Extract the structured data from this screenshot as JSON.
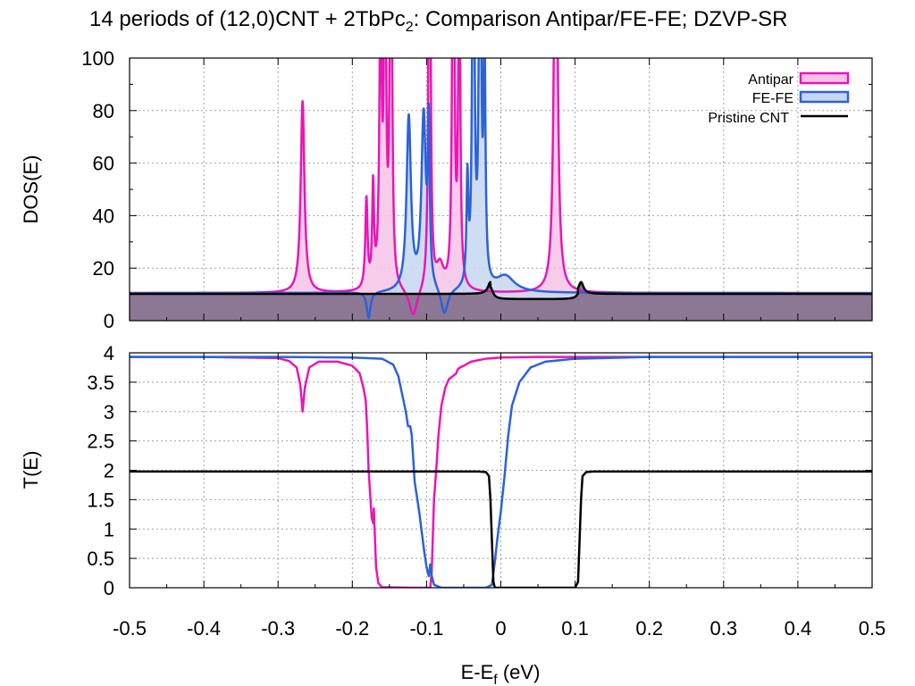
{
  "title": {
    "main": "14 periods of (12,0)CNT + 2TbPc",
    "subscript": "2",
    "suffix": ": Comparison Antipar/FE-FE; DZVP-SR"
  },
  "colors": {
    "antipar": "#e817b5",
    "antipar_fill": "#f6c3e6",
    "fefe": "#2c62d6",
    "fefe_fill": "#c7d7f1",
    "pristine": "#000000",
    "pristine_fill": "#8c7895"
  },
  "chart_data": [
    {
      "id": "dos",
      "type": "line",
      "ylabel": "DOS(E)",
      "xlim": [
        -0.5,
        0.5
      ],
      "ylim": [
        0,
        100
      ],
      "grid": true,
      "y_ticks": [
        "0",
        "20",
        "40",
        "60",
        "80",
        "100"
      ],
      "y_tick_values": [
        0,
        20,
        40,
        60,
        80,
        100
      ],
      "legend_position": "top-right",
      "series": [
        {
          "name": "Antipar",
          "filled": true,
          "peaks": [
            {
              "e": -0.267,
              "h": 73.0,
              "w": 0.003
            },
            {
              "e": -0.181,
              "h": 34.0,
              "w": 0.0018
            },
            {
              "e": -0.172,
              "h": 38.0,
              "w": 0.0015
            },
            {
              "e": -0.162,
              "h": 110.0,
              "w": 0.0018
            },
            {
              "e": -0.156,
              "h": 160.0,
              "w": 0.0015
            },
            {
              "e": -0.148,
              "h": 200.0,
              "w": 0.0015
            },
            {
              "e": -0.096,
              "h": 200.0,
              "w": 0.0015
            },
            {
              "e": -0.082,
              "h": 9.0,
              "w": 0.006
            },
            {
              "e": -0.064,
              "h": 200.0,
              "w": 0.0015
            },
            {
              "e": -0.056,
              "h": 140.0,
              "w": 0.0015
            },
            {
              "e": 0.074,
              "h": 200.0,
              "w": 0.0025
            }
          ],
          "dips": [
            {
              "e": -0.118,
              "h": 10.5,
              "w": 0.0065
            }
          ],
          "baseline": 10.5
        },
        {
          "name": "FE-FE",
          "filled": true,
          "peaks": [
            {
              "e": -0.124,
              "h": 66.0,
              "w": 0.0035
            },
            {
              "e": -0.104,
              "h": 66.0,
              "w": 0.0035
            },
            {
              "e": -0.097,
              "h": 58.0,
              "w": 0.0015
            },
            {
              "e": -0.037,
              "h": 200.0,
              "w": 0.0015
            },
            {
              "e": -0.045,
              "h": 40.0,
              "w": 0.0015
            },
            {
              "e": -0.028,
              "h": 200.0,
              "w": 0.0015
            },
            {
              "e": -0.022,
              "h": 90.0,
              "w": 0.0015
            },
            {
              "e": 0.006,
              "h": 6.0,
              "w": 0.015
            }
          ],
          "dips": [
            {
              "e": -0.076,
              "h": 10.0,
              "w": 0.0055
            },
            {
              "e": -0.178,
              "h": 10.0,
              "w": 0.003
            }
          ],
          "baseline": 10.5
        },
        {
          "name": "Pristine CNT",
          "filled": true,
          "baseline_left": 10.2,
          "baseline_gap": 8.2,
          "gap": [
            -0.014,
            0.104
          ],
          "peaks": [
            {
              "e": -0.014,
              "h": 4.5,
              "w": 0.004
            },
            {
              "e": 0.108,
              "h": 4.5,
              "w": 0.004
            }
          ]
        }
      ]
    },
    {
      "id": "transmission",
      "type": "line",
      "xlabel_main": "E-E",
      "xlabel_sub": "f",
      "xlabel_unit": " (eV)",
      "ylabel": "T(E)",
      "xlim": [
        -0.5,
        0.5
      ],
      "ylim": [
        0,
        4
      ],
      "grid": true,
      "x_ticks": [
        "-0.5",
        "-0.4",
        "-0.3",
        "-0.2",
        "-0.1",
        "0",
        "0.1",
        "0.2",
        "0.3",
        "0.4",
        "0.5"
      ],
      "x_tick_values": [
        -0.5,
        -0.4,
        -0.3,
        -0.2,
        -0.1,
        0,
        0.1,
        0.2,
        0.3,
        0.4,
        0.5
      ],
      "y_ticks": [
        "0",
        "0.5",
        "1",
        "1.5",
        "2",
        "2.5",
        "3",
        "3.5",
        "4"
      ],
      "y_tick_values": [
        0,
        0.5,
        1,
        1.5,
        2,
        2.5,
        3,
        3.5,
        4
      ],
      "series": [
        {
          "name": "Antipar",
          "points": [
            [
              -0.5,
              3.93
            ],
            [
              -0.4,
              3.93
            ],
            [
              -0.3,
              3.91
            ],
            [
              -0.285,
              3.86
            ],
            [
              -0.275,
              3.75
            ],
            [
              -0.27,
              3.45
            ],
            [
              -0.267,
              3.0
            ],
            [
              -0.264,
              3.4
            ],
            [
              -0.258,
              3.75
            ],
            [
              -0.245,
              3.85
            ],
            [
              -0.22,
              3.85
            ],
            [
              -0.2,
              3.78
            ],
            [
              -0.19,
              3.65
            ],
            [
              -0.185,
              3.4
            ],
            [
              -0.182,
              3.2
            ],
            [
              -0.18,
              2.7
            ],
            [
              -0.178,
              2.0
            ],
            [
              -0.176,
              1.6
            ],
            [
              -0.174,
              1.2
            ],
            [
              -0.172,
              1.1
            ],
            [
              -0.171,
              1.35
            ],
            [
              -0.17,
              1.0
            ],
            [
              -0.168,
              0.35
            ],
            [
              -0.165,
              0.08
            ],
            [
              -0.16,
              0.01
            ],
            [
              -0.12,
              0.0
            ],
            [
              -0.095,
              0.0
            ],
            [
              -0.093,
              0.3
            ],
            [
              -0.09,
              1.5
            ],
            [
              -0.087,
              2.0
            ],
            [
              -0.084,
              2.6
            ],
            [
              -0.08,
              3.1
            ],
            [
              -0.075,
              3.4
            ],
            [
              -0.07,
              3.55
            ],
            [
              -0.06,
              3.65
            ],
            [
              -0.058,
              3.72
            ],
            [
              -0.055,
              3.75
            ],
            [
              -0.05,
              3.78
            ],
            [
              -0.04,
              3.85
            ],
            [
              -0.02,
              3.9
            ],
            [
              0.0,
              3.92
            ],
            [
              0.05,
              3.93
            ],
            [
              0.074,
              3.93
            ],
            [
              0.08,
              3.93
            ],
            [
              0.2,
              3.93
            ],
            [
              0.5,
              3.93
            ]
          ]
        },
        {
          "name": "FE-FE",
          "points": [
            [
              -0.5,
              3.93
            ],
            [
              -0.3,
              3.93
            ],
            [
              -0.2,
              3.92
            ],
            [
              -0.16,
              3.9
            ],
            [
              -0.145,
              3.8
            ],
            [
              -0.138,
              3.6
            ],
            [
              -0.133,
              3.3
            ],
            [
              -0.128,
              3.0
            ],
            [
              -0.125,
              2.75
            ],
            [
              -0.122,
              2.75
            ],
            [
              -0.12,
              2.6
            ],
            [
              -0.118,
              2.2
            ],
            [
              -0.116,
              1.8
            ],
            [
              -0.113,
              1.55
            ],
            [
              -0.11,
              1.3
            ],
            [
              -0.106,
              0.9
            ],
            [
              -0.103,
              0.6
            ],
            [
              -0.1,
              0.35
            ],
            [
              -0.097,
              0.2
            ],
            [
              -0.095,
              0.4
            ],
            [
              -0.093,
              0.2
            ],
            [
              -0.09,
              0.05
            ],
            [
              -0.08,
              0.0
            ],
            [
              -0.02,
              0.0
            ],
            [
              -0.012,
              0.05
            ],
            [
              -0.008,
              0.45
            ],
            [
              -0.005,
              0.8
            ],
            [
              0.0,
              1.3
            ],
            [
              0.005,
              1.9
            ],
            [
              0.01,
              2.6
            ],
            [
              0.015,
              3.1
            ],
            [
              0.025,
              3.5
            ],
            [
              0.04,
              3.75
            ],
            [
              0.06,
              3.85
            ],
            [
              0.1,
              3.9
            ],
            [
              0.2,
              3.93
            ],
            [
              0.5,
              3.93
            ]
          ]
        },
        {
          "name": "Pristine CNT",
          "points": [
            [
              -0.5,
              1.98
            ],
            [
              -0.03,
              1.98
            ],
            [
              -0.02,
              1.97
            ],
            [
              -0.016,
              1.9
            ],
            [
              -0.014,
              1.5
            ],
            [
              -0.012,
              0.8
            ],
            [
              -0.01,
              0.1
            ],
            [
              -0.008,
              0.0
            ],
            [
              0.1,
              0.0
            ],
            [
              0.104,
              0.1
            ],
            [
              0.106,
              0.8
            ],
            [
              0.108,
              1.5
            ],
            [
              0.11,
              1.9
            ],
            [
              0.115,
              1.97
            ],
            [
              0.125,
              1.98
            ],
            [
              0.5,
              1.98
            ]
          ]
        }
      ]
    }
  ]
}
